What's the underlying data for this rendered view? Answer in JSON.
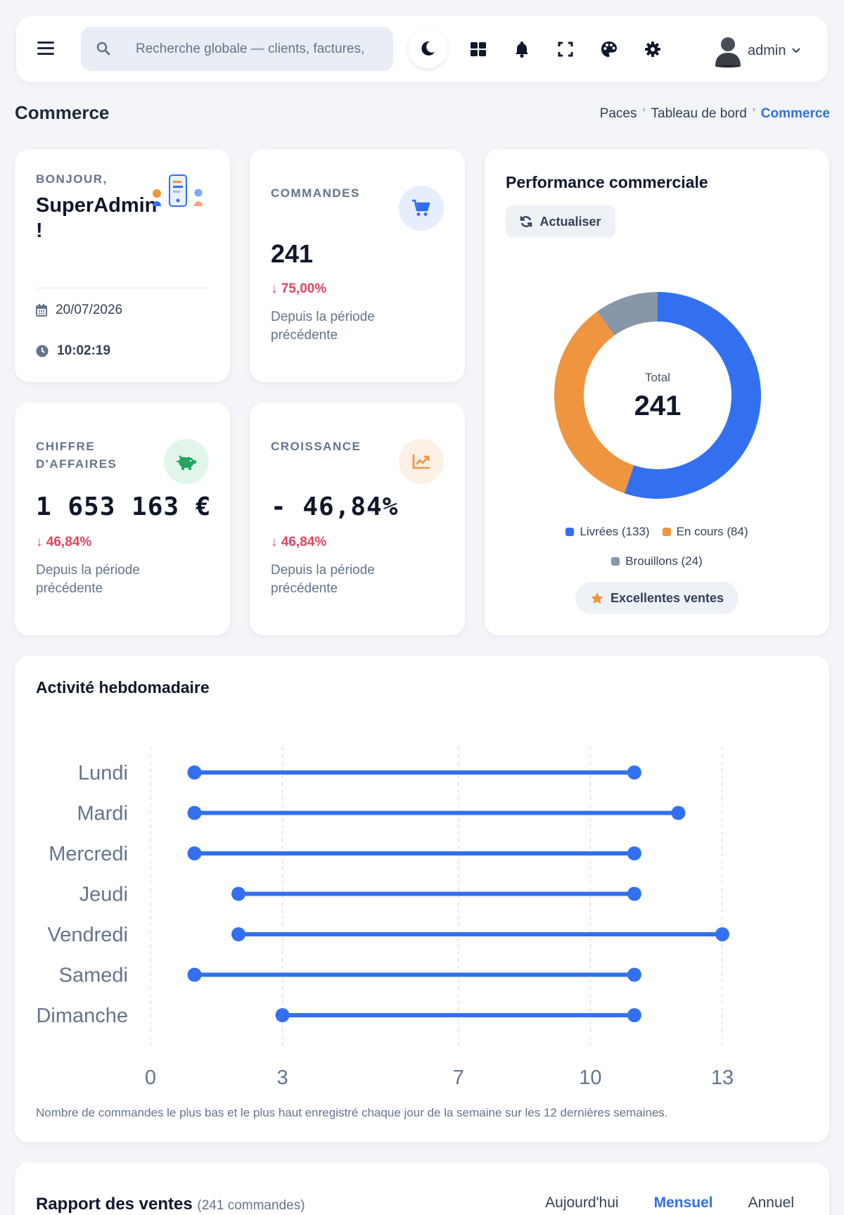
{
  "header": {
    "search_placeholder": "Recherche globale — clients, factures, commandes…",
    "user_name": "admin"
  },
  "page": {
    "title": "Commerce",
    "breadcrumb": [
      "Paces",
      "Tableau de bord",
      "Commerce"
    ]
  },
  "welcome": {
    "greeting": "BONJOUR,",
    "name": "SuperAdmin !",
    "date": "20/07/2026",
    "time": "10:02:19"
  },
  "stats": {
    "orders": {
      "label": "COMMANDES",
      "value": "241",
      "delta": "75,00%",
      "desc": "Depuis la période précédente"
    },
    "revenue": {
      "label": "CHIFFRE D'AFFAIRES",
      "value": "1 653 163 €",
      "delta": "46,84%",
      "desc": "Depuis la période précédente"
    },
    "growth": {
      "label": "CROISSANCE",
      "value": "- 46,84%",
      "delta": "46,84%",
      "desc": "Depuis la période précédente"
    }
  },
  "performance": {
    "title": "Performance commerciale",
    "refresh_label": "Actualiser",
    "total_label": "Total",
    "total_value": "241",
    "badge": "Excellentes ventes",
    "segments": [
      {
        "label": "Livrées (133)",
        "value": 133,
        "color": "#3370f0"
      },
      {
        "label": "En cours (84)",
        "value": 84,
        "color": "#f0953f"
      },
      {
        "label": "Brouillons (24)",
        "value": 24,
        "color": "#8796a8"
      }
    ]
  },
  "activity": {
    "title": "Activité hebdomadaire",
    "note": "Nombre de commandes le plus bas et le plus haut enregistré chaque jour de la semaine sur les 12 dernières semaines.",
    "chart_data": {
      "type": "dumbbell",
      "categories": [
        "Lundi",
        "Mardi",
        "Mercredi",
        "Jeudi",
        "Vendredi",
        "Samedi",
        "Dimanche"
      ],
      "min": [
        1,
        1,
        1,
        2,
        2,
        1,
        3
      ],
      "max": [
        11,
        12,
        11,
        11,
        13,
        11,
        11
      ],
      "xticks": [
        0,
        3,
        7,
        10,
        13
      ],
      "xlim": [
        0,
        13
      ],
      "color": "#3370f0",
      "grid": "vertical dashed"
    }
  },
  "report": {
    "title": "Rapport des ventes",
    "count": "(241 commandes)",
    "tabs": [
      "Aujourd'hui",
      "Mensuel",
      "Annuel"
    ],
    "active_tab": "Mensuel"
  }
}
